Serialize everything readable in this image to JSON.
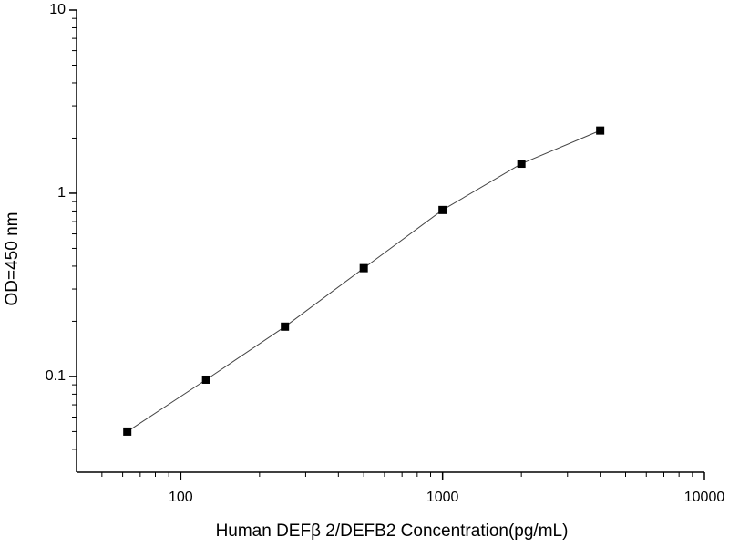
{
  "chart_data": {
    "type": "line",
    "x_label": "Human DEFβ 2/DEFB2 Concentration(pg/mL)",
    "y_label": "OD=450 nm",
    "x_log": true,
    "y_log": true,
    "x": [
      62.5,
      125,
      250,
      500,
      1000,
      2000,
      4000
    ],
    "series": [
      {
        "color": "#000000",
        "values": [
          0.05,
          0.096,
          0.187,
          0.39,
          0.81,
          1.45,
          2.2
        ]
      }
    ],
    "xlim": [
      40,
      10000
    ],
    "ylim": [
      0.03,
      10
    ],
    "xticks": [
      100,
      1000,
      10000
    ],
    "yticks": [
      0.1,
      1,
      10
    ],
    "xminorticks": [
      50,
      60,
      70,
      80,
      90,
      200,
      300,
      400,
      500,
      600,
      700,
      800,
      900,
      2000,
      3000,
      4000,
      5000,
      6000,
      7000,
      8000,
      9000
    ],
    "yminorticks": [
      0.04,
      0.05,
      0.06,
      0.07,
      0.08,
      0.09,
      0.2,
      0.3,
      0.4,
      0.5,
      0.6,
      0.7,
      0.8,
      0.9,
      2,
      3,
      4,
      5,
      6,
      7,
      8,
      9
    ]
  }
}
